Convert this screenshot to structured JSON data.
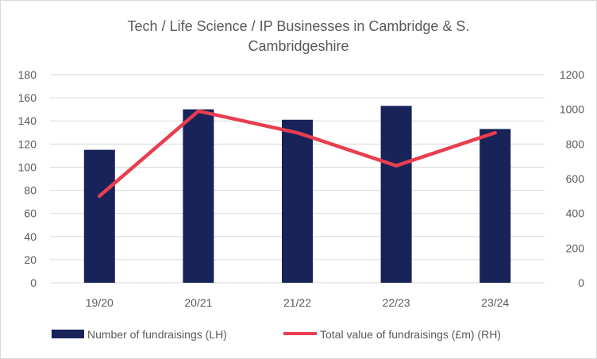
{
  "chart_data": {
    "type": "bar+line",
    "title_lines": [
      "Tech / Life Science / IP Businesses in Cambridge & S.",
      "Cambridgeshire"
    ],
    "categories": [
      "19/20",
      "20/21",
      "21/22",
      "22/23",
      "23/24"
    ],
    "series": [
      {
        "name": "Number of fundraisings (LH)",
        "type": "bar",
        "axis": "left",
        "color": "#172359",
        "values": [
          115,
          150,
          141,
          153,
          133
        ]
      },
      {
        "name": "Total value of fundraisings (£m) (RH)",
        "type": "line",
        "axis": "right",
        "color": "#e83e50",
        "values": [
          500,
          990,
          865,
          675,
          865
        ]
      }
    ],
    "left_axis": {
      "ylim": [
        0,
        180
      ],
      "ticks": [
        "0",
        "20",
        "40",
        "60",
        "80",
        "100",
        "120",
        "140",
        "160",
        "180"
      ]
    },
    "right_axis": {
      "ylim": [
        0,
        1200
      ],
      "ticks": [
        "0",
        "200",
        "400",
        "600",
        "800",
        "1000",
        "1200"
      ]
    },
    "grid": true,
    "legend": "bottom"
  }
}
